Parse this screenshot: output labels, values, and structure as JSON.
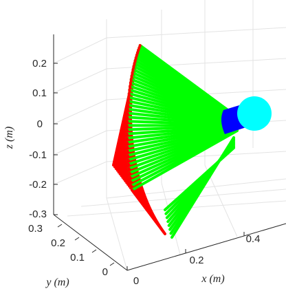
{
  "chart_data": {
    "type": "line",
    "title": "",
    "xlabel": "x (m)",
    "ylabel": "y (m)",
    "zlabel": "z (m)",
    "xlim": [
      0,
      0.5
    ],
    "ylim": [
      0,
      0.3
    ],
    "zlim": [
      -0.3,
      0.25
    ],
    "x_ticks": [
      "0",
      "0.2",
      "0.4"
    ],
    "y_ticks": [
      "0",
      "0.1",
      "0.2",
      "0.3"
    ],
    "z_ticks": [
      "-0.3",
      "-0.2",
      "-0.1",
      "0",
      "0.1",
      "0.2"
    ],
    "grid": true,
    "colors": {
      "red_links": "#ff0000",
      "green_links": "#00ff00",
      "blue_joint": "#0000ff",
      "cyan_sphere": "#00ffff"
    }
  }
}
